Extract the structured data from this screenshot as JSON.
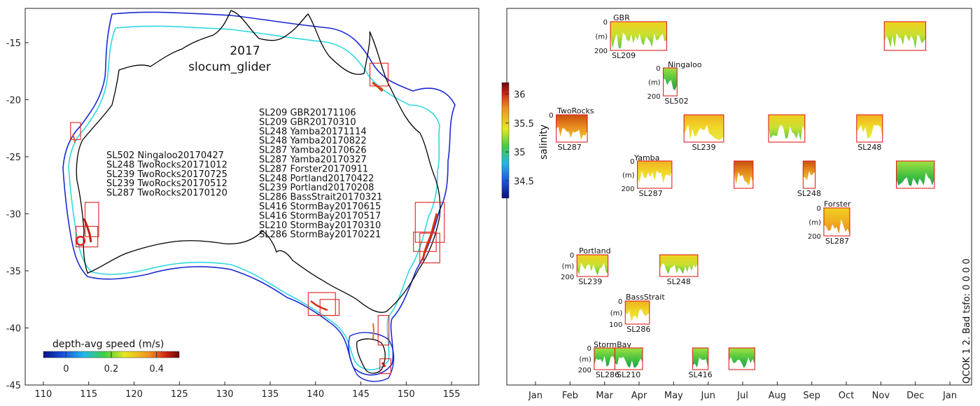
{
  "chart_data": [
    {
      "type": "map",
      "title": "2017",
      "subtitle": "slocum_glider",
      "xlim": [
        108,
        158
      ],
      "ylim": [
        -45,
        -12
      ],
      "xticks": [
        110,
        115,
        120,
        125,
        130,
        135,
        140,
        145,
        150,
        155
      ],
      "yticks": [
        -15,
        -20,
        -25,
        -30,
        -35,
        -40,
        -45
      ],
      "legend_west": [
        "SL502 Ningaloo20170427",
        "SL248 TwoRocks20171012",
        "SL239 TwoRocks20170725",
        "SL239 TwoRocks20170512",
        "SL287 TwoRocks20170120"
      ],
      "legend_east": [
        "SL209 GBR20171106",
        "SL209 GBR20170310",
        "SL248 Yamba20171114",
        "SL248 Yamba20170822",
        "SL287 Yamba20170626",
        "SL287 Yamba20170327",
        "SL287 Forster20170911",
        "SL248 Portland20170422",
        "SL239 Portland20170208",
        "SL286 BassStrait20170321",
        "SL416 StormBay20170615",
        "SL416 StormBay20170517",
        "SL210 StormBay20170310",
        "SL286 StormBay20170221"
      ],
      "colorbar": {
        "label": "depth-avg speed (m/s)",
        "ticks": [
          0,
          0.2,
          0.4
        ],
        "range": [
          -0.1,
          0.5
        ]
      },
      "regions": [
        {
          "name": "GBR",
          "lon": [
            146.0,
            148.0
          ],
          "lat": [
            -18.8,
            -16.8
          ]
        },
        {
          "name": "Ningaloo",
          "lon": [
            113.0,
            114.1
          ],
          "lat": [
            -23.5,
            -22.0
          ]
        },
        {
          "name": "TwoRocks-A",
          "lon": [
            114.6,
            116.1
          ],
          "lat": [
            -32.0,
            -29.0
          ]
        },
        {
          "name": "TwoRocks-B",
          "lon": [
            113.6,
            116.0
          ],
          "lat": [
            -32.9,
            -31.1
          ]
        },
        {
          "name": "Yamba/Forster-A",
          "lon": [
            151.0,
            154.2
          ],
          "lat": [
            -32.5,
            -29.0
          ]
        },
        {
          "name": "Yamba/Forster-B",
          "lon": [
            150.8,
            153.3
          ],
          "lat": [
            -33.3,
            -31.6
          ]
        },
        {
          "name": "Yamba/Forster-C",
          "lon": [
            151.5,
            153.7
          ],
          "lat": [
            -34.3,
            -31.7
          ]
        },
        {
          "name": "Portland-A",
          "lon": [
            139.2,
            142.2
          ],
          "lat": [
            -38.9,
            -36.9
          ]
        },
        {
          "name": "Portland-B",
          "lon": [
            140.5,
            142.6
          ],
          "lat": [
            -38.9,
            -37.5
          ]
        },
        {
          "name": "BassStrait",
          "lon": [
            146.9,
            148.1
          ],
          "lat": [
            -41.5,
            -38.9
          ]
        },
        {
          "name": "StormBay",
          "lon": [
            147.1,
            148.3
          ],
          "lat": [
            -44.0,
            -42.7
          ]
        }
      ]
    },
    {
      "type": "timeline-sections",
      "xlabels": [
        "Jan",
        "Feb",
        "Mar",
        "Apr",
        "May",
        "Jun",
        "Jul",
        "Aug",
        "Sep",
        "Oct",
        "Nov",
        "Dec",
        "Jan"
      ],
      "colorbar": {
        "label": "salinity",
        "ticks": [
          34.5,
          35,
          35.5,
          36
        ],
        "range": [
          34.2,
          36.2
        ]
      },
      "side_text": "QCOK 1  2. Bad tsfo: 0  0  0  0",
      "site_labels": [
        {
          "text": "GBR"
        },
        {
          "text": "Ningaloo"
        },
        {
          "text": "TwoRocks"
        },
        {
          "text": "Yamba"
        },
        {
          "text": "Forster"
        },
        {
          "text": "Portland"
        },
        {
          "text": "BassStrait"
        },
        {
          "text": "StormBay"
        }
      ],
      "panels": [
        {
          "site": "GBR",
          "glider": "SL209",
          "start_month": 2.17,
          "end_month": 3.8,
          "depth_top": "0",
          "depth_bottom": "200",
          "unit": "(m)",
          "palette": "yellow-green"
        },
        {
          "site": "GBR",
          "glider": "",
          "start_month": 10.1,
          "end_month": 11.3,
          "depth_top": "",
          "depth_bottom": "",
          "unit": "",
          "palette": "yellow-green"
        },
        {
          "site": "Ningaloo",
          "glider": "SL502",
          "start_month": 3.7,
          "end_month": 4.1,
          "depth_top": "0",
          "depth_bottom": "200",
          "unit": "(m)",
          "palette": "green"
        },
        {
          "site": "TwoRocks",
          "glider": "SL287",
          "start_month": 0.6,
          "end_month": 1.5,
          "depth_top": "0",
          "depth_bottom": "",
          "unit": "",
          "palette": "orange"
        },
        {
          "site": "TwoRocks",
          "glider": "SL239",
          "start_month": 4.3,
          "end_month": 5.45,
          "depth_top": "",
          "depth_bottom": "",
          "unit": "",
          "palette": "yellow"
        },
        {
          "site": "TwoRocks",
          "glider": "",
          "start_month": 6.75,
          "end_month": 7.8,
          "depth_top": "",
          "depth_bottom": "",
          "unit": "",
          "palette": "yellow-green"
        },
        {
          "site": "TwoRocks",
          "glider": "SL248",
          "start_month": 9.3,
          "end_month": 10.05,
          "depth_top": "",
          "depth_bottom": "",
          "unit": "",
          "palette": "yellow"
        },
        {
          "site": "Yamba",
          "glider": "SL287",
          "start_month": 2.95,
          "end_month": 3.95,
          "depth_top": "0",
          "depth_bottom": "200",
          "unit": "(m)",
          "palette": "yellow"
        },
        {
          "site": "Yamba",
          "glider": "",
          "start_month": 5.75,
          "end_month": 6.3,
          "depth_top": "",
          "depth_bottom": "",
          "unit": "",
          "palette": "orange"
        },
        {
          "site": "Yamba",
          "glider": "SL248",
          "start_month": 7.75,
          "end_month": 8.1,
          "depth_top": "",
          "depth_bottom": "",
          "unit": "",
          "palette": "orange"
        },
        {
          "site": "Yamba",
          "glider": "",
          "start_month": 10.45,
          "end_month": 11.55,
          "depth_top": "",
          "depth_bottom": "",
          "unit": "",
          "palette": "green"
        },
        {
          "site": "Forster",
          "glider": "SL287",
          "start_month": 8.35,
          "end_month": 9.1,
          "depth_top": "0",
          "depth_bottom": "200",
          "unit": "(m)",
          "palette": "yellow-orange"
        },
        {
          "site": "Portland",
          "glider": "SL239",
          "start_month": 1.2,
          "end_month": 2.1,
          "depth_top": "0",
          "depth_bottom": "200",
          "unit": "(m)",
          "palette": "yellow-green"
        },
        {
          "site": "Portland",
          "glider": "SL248",
          "start_month": 3.6,
          "end_month": 4.7,
          "depth_top": "",
          "depth_bottom": "",
          "unit": "",
          "palette": "yellow-green"
        },
        {
          "site": "BassStrait",
          "glider": "SL286",
          "start_month": 2.6,
          "end_month": 3.3,
          "depth_top": "0",
          "depth_bottom": "100",
          "unit": "(m)",
          "palette": "yellow"
        },
        {
          "site": "StormBay",
          "glider": "SL286",
          "start_month": 1.7,
          "end_month": 2.3,
          "depth_top": "0",
          "depth_bottom": "200",
          "unit": "(m)",
          "palette": "green"
        },
        {
          "site": "StormBay",
          "glider": "SL210",
          "start_month": 2.3,
          "end_month": 3.1,
          "depth_top": "",
          "depth_bottom": "",
          "unit": "",
          "palette": "green"
        },
        {
          "site": "StormBay",
          "glider": "SL416",
          "start_month": 4.55,
          "end_month": 5.0,
          "depth_top": "",
          "depth_bottom": "",
          "unit": "",
          "palette": "green"
        },
        {
          "site": "StormBay",
          "glider": "",
          "start_month": 5.6,
          "end_month": 6.35,
          "depth_top": "",
          "depth_bottom": "",
          "unit": "",
          "palette": "green"
        }
      ]
    }
  ]
}
